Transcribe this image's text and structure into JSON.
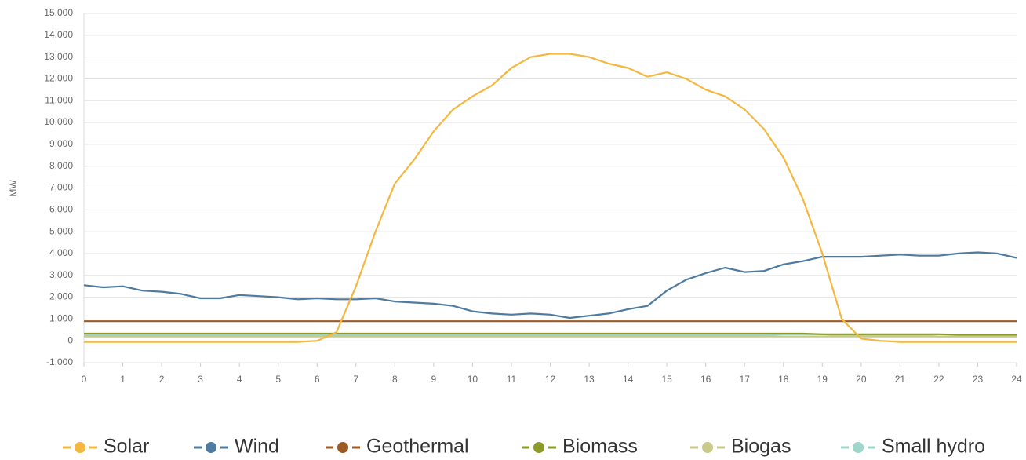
{
  "chart_data": {
    "type": "line",
    "ylabel": "MW",
    "x": [
      0,
      0.5,
      1,
      1.5,
      2,
      2.5,
      3,
      3.5,
      4,
      4.5,
      5,
      5.5,
      6,
      6.5,
      7,
      7.5,
      8,
      8.5,
      9,
      9.5,
      10,
      10.5,
      11,
      11.5,
      12,
      12.5,
      13,
      13.5,
      14,
      14.5,
      15,
      15.5,
      16,
      16.5,
      17,
      17.5,
      18,
      18.5,
      19,
      19.5,
      20,
      20.5,
      21,
      21.5,
      22,
      22.5,
      23,
      23.5,
      24
    ],
    "xlim": [
      0,
      24
    ],
    "xticks": [
      0,
      1,
      2,
      3,
      4,
      5,
      6,
      7,
      8,
      9,
      10,
      11,
      12,
      13,
      14,
      15,
      16,
      17,
      18,
      19,
      20,
      21,
      22,
      23,
      24
    ],
    "ylim": [
      -1000,
      15000
    ],
    "yticks": [
      {
        "value": -1000,
        "label": "-1,000"
      },
      0,
      {
        "value": 1000,
        "label": "1,000"
      },
      {
        "value": 2000,
        "label": "2,000"
      },
      {
        "value": 3000,
        "label": "3,000"
      },
      {
        "value": 4000,
        "label": "4,000"
      },
      {
        "value": 5000,
        "label": "5,000"
      },
      {
        "value": 6000,
        "label": "6,000"
      },
      {
        "value": 7000,
        "label": "7,000"
      },
      {
        "value": 8000,
        "label": "8,000"
      },
      {
        "value": 9000,
        "label": "9,000"
      },
      {
        "value": 10000,
        "label": "10,000"
      },
      {
        "value": 11000,
        "label": "11,000"
      },
      {
        "value": 12000,
        "label": "12,000"
      },
      {
        "value": 13000,
        "label": "13,000"
      },
      {
        "value": 14000,
        "label": "14,000"
      },
      {
        "value": 15000,
        "label": "15,000"
      }
    ],
    "grid": true,
    "legend": "bottom",
    "series": [
      {
        "name": "Solar",
        "color": "#f4b840",
        "values": [
          -50,
          -50,
          -50,
          -50,
          -50,
          -50,
          -50,
          -50,
          -50,
          -50,
          -50,
          -50,
          0,
          400,
          2500,
          5000,
          7200,
          8300,
          9600,
          10600,
          11200,
          11700,
          12500,
          13000,
          13150,
          13150,
          13000,
          12700,
          12500,
          12100,
          12300,
          12000,
          11500,
          11200,
          10600,
          9700,
          8400,
          6500,
          4000,
          1000,
          100,
          0,
          -50,
          -50,
          -50,
          -50,
          -50,
          -50,
          -50
        ]
      },
      {
        "name": "Wind",
        "color": "#4f7ba0",
        "values": [
          2550,
          2450,
          2500,
          2300,
          2250,
          2150,
          1950,
          1950,
          2100,
          2050,
          2000,
          1900,
          1950,
          1900,
          1900,
          1950,
          1800,
          1750,
          1700,
          1600,
          1350,
          1250,
          1200,
          1250,
          1200,
          1050,
          1150,
          1250,
          1450,
          1600,
          2300,
          2800,
          3100,
          3350,
          3150,
          3200,
          3500,
          3650,
          3850,
          3850,
          3850,
          3900,
          3950,
          3900,
          3900,
          4000,
          4050,
          4000,
          3800
        ]
      },
      {
        "name": "Geothermal",
        "color": "#9c5a24",
        "values": [
          900,
          900,
          900,
          900,
          900,
          900,
          900,
          900,
          900,
          900,
          900,
          900,
          900,
          900,
          900,
          900,
          900,
          900,
          900,
          900,
          900,
          900,
          900,
          900,
          900,
          900,
          900,
          900,
          900,
          900,
          900,
          900,
          900,
          900,
          900,
          900,
          900,
          900,
          900,
          900,
          900,
          900,
          900,
          900,
          900,
          900,
          900,
          900,
          900
        ]
      },
      {
        "name": "Biomass",
        "color": "#8c9a2a",
        "values": [
          330,
          330,
          330,
          330,
          330,
          330,
          330,
          330,
          330,
          330,
          330,
          330,
          330,
          330,
          330,
          330,
          330,
          330,
          330,
          330,
          330,
          330,
          330,
          330,
          330,
          330,
          330,
          330,
          330,
          330,
          330,
          330,
          330,
          330,
          330,
          330,
          330,
          330,
          300,
          300,
          300,
          300,
          300,
          300,
          300,
          280,
          280,
          280,
          280
        ]
      },
      {
        "name": "Biogas",
        "color": "#c9c98a",
        "values": [
          200,
          200,
          200,
          200,
          200,
          200,
          200,
          200,
          200,
          200,
          200,
          200,
          200,
          200,
          200,
          200,
          200,
          200,
          200,
          200,
          200,
          200,
          200,
          200,
          200,
          200,
          200,
          200,
          200,
          200,
          200,
          200,
          200,
          200,
          200,
          200,
          200,
          200,
          200,
          200,
          200,
          200,
          200,
          200,
          200,
          200,
          200,
          200,
          200
        ]
      },
      {
        "name": "Small hydro",
        "color": "#9fd6cc",
        "values": [
          250,
          250,
          250,
          250,
          250,
          250,
          250,
          250,
          250,
          250,
          250,
          250,
          250,
          250,
          250,
          250,
          250,
          250,
          250,
          250,
          250,
          250,
          250,
          250,
          250,
          250,
          250,
          250,
          250,
          250,
          250,
          250,
          250,
          250,
          250,
          250,
          300,
          300,
          300,
          250,
          250,
          250,
          250,
          250,
          200,
          200,
          200,
          200,
          200
        ]
      }
    ]
  }
}
